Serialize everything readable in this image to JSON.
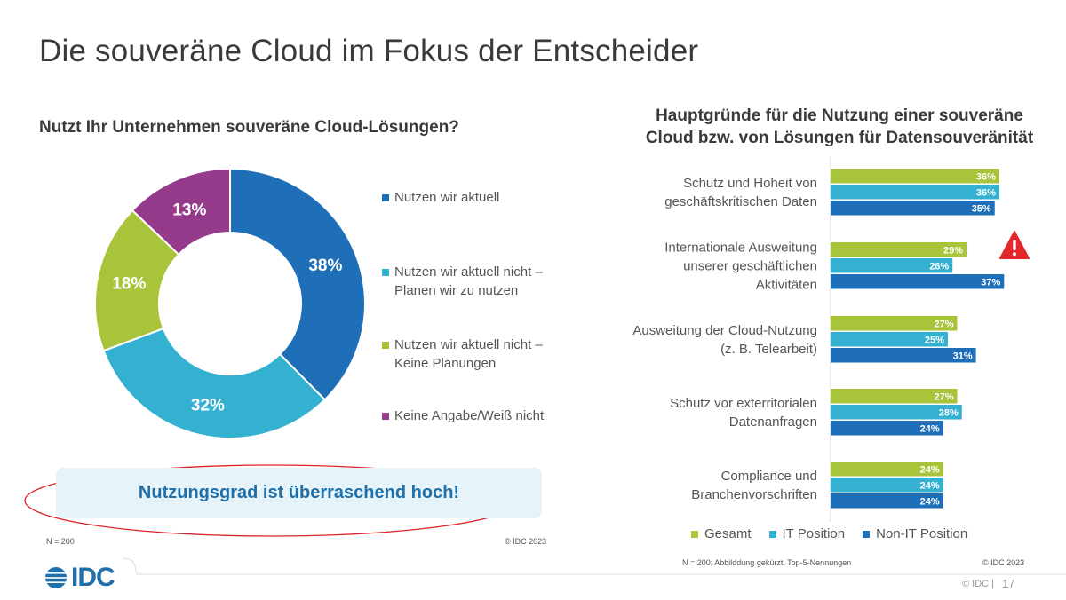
{
  "page": {
    "title": "Die souveräne Cloud im Fokus der Entscheider",
    "footer_copyright": "© IDC",
    "footer_sep": "|",
    "page_number": "17",
    "logo_text": "IDC"
  },
  "colors": {
    "dark_blue": "#1f6fb8",
    "light_blue": "#34b1d0",
    "green": "#a8c43a",
    "purple": "#963b8c",
    "callout_text": "#1f6fa8",
    "callout_bg": "#e6f3f8",
    "ellipse": "#d9262a"
  },
  "chart_data": [
    {
      "type": "pie",
      "title": "Nutzt Ihr Unternehmen souveräne Cloud-Lösungen?",
      "categories": [
        "Nutzen wir aktuell",
        "Nutzen wir aktuell nicht – Planen wir zu nutzen",
        "Nutzen wir aktuell nicht – Keine Planungen",
        "Keine Angabe/Weiß nicht"
      ],
      "legend_lines": [
        [
          "Nutzen wir aktuell"
        ],
        [
          "Nutzen wir aktuell nicht –",
          "Planen wir zu nutzen"
        ],
        [
          "Nutzen wir aktuell nicht –",
          "Keine Planungen"
        ],
        [
          "Keine Angabe/Weiß nicht"
        ]
      ],
      "values": [
        38,
        32,
        18,
        13
      ],
      "labels": [
        "38%",
        "32%",
        "18%",
        "13%"
      ],
      "colors": [
        "#1f6fb8",
        "#34b1d0",
        "#a8c43a",
        "#963b8c"
      ],
      "donut": true,
      "legend_position": "right",
      "note": "N = 200",
      "source": "© IDC 2023"
    },
    {
      "type": "bar",
      "orientation": "horizontal",
      "title": "Hauptgründe für die Nutzung einer souveräne Cloud bzw. von Lösungen für Datensouveränität",
      "title_lines": [
        "Hauptgründe für die Nutzung einer souveräne",
        "Cloud bzw. von Lösungen für Datensouveränität"
      ],
      "categories": [
        [
          "Schutz und Hoheit von",
          "geschäftskritischen Daten"
        ],
        [
          "Internationale Ausweitung",
          "unserer geschäftlichen",
          "Aktivitäten"
        ],
        [
          "Ausweitung der Cloud-Nutzung",
          "(z. B. Telearbeit)"
        ],
        [
          "Schutz vor exterritorialen",
          "Datenanfragen"
        ],
        [
          "Compliance und",
          "Branchenvorschriften"
        ]
      ],
      "series": [
        {
          "name": "Gesamt",
          "color": "#a8c43a",
          "values": [
            36,
            29,
            27,
            27,
            24
          ]
        },
        {
          "name": "IT Position",
          "color": "#34b1d0",
          "values": [
            36,
            26,
            25,
            28,
            24
          ]
        },
        {
          "name": "Non-IT Position",
          "color": "#1f6fb8",
          "values": [
            35,
            37,
            31,
            24,
            24
          ]
        }
      ],
      "value_suffix": "%",
      "xlim": [
        0,
        40
      ],
      "legend_position": "bottom",
      "warning_icon": "warning-triangle-icon",
      "note": "N = 200; Abbilddung gekürzt, Top-5-Nennungen",
      "source": "© IDC 2023"
    }
  ],
  "callout": {
    "text": "Nutzungsgrad ist überraschend hoch!"
  }
}
